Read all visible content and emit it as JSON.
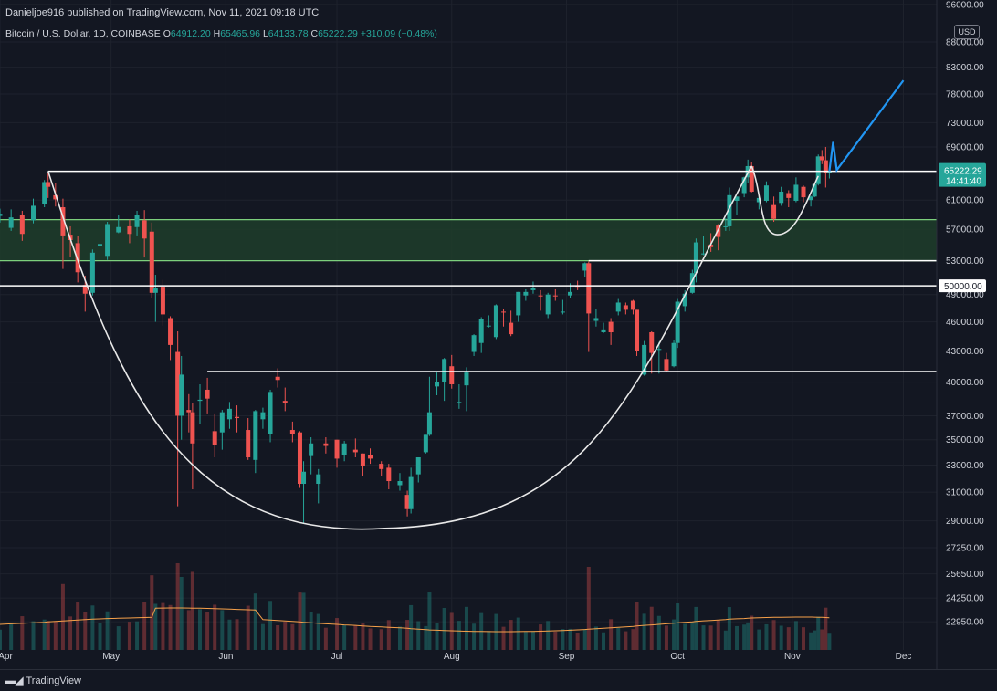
{
  "header": {
    "published": "Danieljoe916 published on TradingView.com, Nov 11, 2021 09:18 UTC"
  },
  "symbol": {
    "name": "Bitcoin / U.S. Dollar, 1D, COINBASE",
    "open_label": "O",
    "open": "64912.20",
    "high_label": "H",
    "high": "65465.96",
    "low_label": "L",
    "low": "64133.78",
    "close_label": "C",
    "close": "65222.29",
    "change": "+310.09 (+0.48%)"
  },
  "price_axis": {
    "currency": "USD",
    "ticks": [
      "96000.00",
      "88000.00",
      "83000.00",
      "78000.00",
      "73000.00",
      "69000.00",
      "61000.00",
      "57000.00",
      "53000.00",
      "49000.00",
      "46000.00",
      "43000.00",
      "40000.00",
      "37000.00",
      "35000.00",
      "33000.00",
      "31000.00",
      "29000.00",
      "27250.00",
      "25650.00",
      "24250.00",
      "22950.00"
    ],
    "current_price": "65222.29",
    "countdown": "14:41:40",
    "level_label": "50000.00"
  },
  "time_axis": {
    "ticks": [
      "Apr",
      "May",
      "Jun",
      "Jul",
      "Aug",
      "Sep",
      "Oct",
      "Nov",
      "Dec"
    ]
  },
  "footer": {
    "brand": "TradingView"
  },
  "colors": {
    "background": "#131722",
    "up": "#26a69a",
    "down": "#ef5350",
    "zone": "#1f3d2a",
    "zone_line": "#7ccf7c",
    "projection": "#2196f3",
    "level": "#ffffff"
  },
  "chart_data": {
    "type": "candlestick",
    "title": "Bitcoin / U.S. Dollar, 1D, COINBASE",
    "x_range": [
      "2021-04-01",
      "2021-12-10"
    ],
    "y_scale": "log",
    "ylim": [
      21500,
      97000
    ],
    "candles": [
      [
        "2021-04-01",
        58800,
        59800,
        57900,
        59100
      ],
      [
        "2021-04-04",
        57200,
        59700,
        56800,
        58600
      ],
      [
        "2021-04-07",
        58900,
        59500,
        55500,
        56400
      ],
      [
        "2021-04-10",
        58200,
        61200,
        57800,
        60200
      ],
      [
        "2021-04-13",
        60400,
        63900,
        60000,
        63600
      ],
      [
        "2021-04-14",
        63600,
        64900,
        61300,
        62900
      ],
      [
        "2021-04-16",
        61700,
        63500,
        60100,
        61100
      ],
      [
        "2021-04-18",
        60000,
        61200,
        52000,
        56200
      ],
      [
        "2021-04-20",
        56300,
        57400,
        53500,
        55600
      ],
      [
        "2021-04-22",
        55200,
        56100,
        50400,
        51600
      ],
      [
        "2021-04-24",
        50100,
        51200,
        47100,
        49100
      ],
      [
        "2021-04-26",
        49200,
        54400,
        48900,
        54000
      ],
      [
        "2021-04-28",
        54800,
        56400,
        53600,
        55100
      ],
      [
        "2021-04-30",
        53600,
        58000,
        53100,
        57700
      ],
      [
        "2021-05-03",
        56600,
        58900,
        56500,
        57300
      ],
      [
        "2021-05-06",
        57400,
        58300,
        55200,
        56400
      ],
      [
        "2021-05-08",
        57300,
        59500,
        56200,
        58900
      ],
      [
        "2021-05-10",
        58200,
        59600,
        53400,
        55800
      ],
      [
        "2021-05-12",
        56700,
        57900,
        48600,
        49200
      ],
      [
        "2021-05-13",
        49200,
        51300,
        46000,
        49700
      ],
      [
        "2021-05-15",
        49900,
        50700,
        45600,
        46800
      ],
      [
        "2021-05-17",
        46400,
        46600,
        42100,
        43600
      ],
      [
        "2021-05-19",
        42900,
        45000,
        30000,
        37000
      ],
      [
        "2021-05-20",
        37000,
        42500,
        35000,
        40700
      ],
      [
        "2021-05-22",
        37500,
        38900,
        35600,
        37300
      ],
      [
        "2021-05-23",
        37300,
        38100,
        31200,
        34700
      ],
      [
        "2021-05-25",
        38300,
        39800,
        36300,
        38400
      ],
      [
        "2021-05-27",
        39300,
        40400,
        37200,
        38500
      ],
      [
        "2021-05-29",
        35700,
        37200,
        33600,
        34600
      ],
      [
        "2021-05-31",
        35600,
        37500,
        34200,
        37300
      ],
      [
        "2021-06-02",
        36700,
        38200,
        35900,
        37600
      ],
      [
        "2021-06-04",
        36900,
        37900,
        35600,
        36800
      ],
      [
        "2021-06-07",
        35800,
        36800,
        33400,
        33600
      ],
      [
        "2021-06-09",
        33400,
        37500,
        32400,
        37400
      ],
      [
        "2021-06-11",
        36700,
        37700,
        35900,
        37300
      ],
      [
        "2021-06-13",
        35500,
        39300,
        34800,
        39100
      ],
      [
        "2021-06-15",
        40500,
        41300,
        39500,
        40200
      ],
      [
        "2021-06-17",
        38300,
        39500,
        37400,
        38100
      ],
      [
        "2021-06-19",
        35800,
        36500,
        34800,
        35500
      ],
      [
        "2021-06-21",
        35600,
        35700,
        31300,
        31600
      ],
      [
        "2021-06-22",
        31600,
        33300,
        28800,
        32500
      ],
      [
        "2021-06-24",
        33700,
        35200,
        32300,
        34700
      ],
      [
        "2021-06-26",
        31600,
        32700,
        30200,
        32300
      ],
      [
        "2021-06-28",
        34700,
        35200,
        33900,
        34500
      ],
      [
        "2021-07-01",
        35000,
        35000,
        32800,
        33500
      ],
      [
        "2021-07-03",
        33800,
        34900,
        33300,
        34700
      ],
      [
        "2021-07-06",
        34200,
        35100,
        33600,
        34000
      ],
      [
        "2021-07-08",
        33900,
        33900,
        32200,
        32900
      ],
      [
        "2021-07-10",
        33800,
        34300,
        33100,
        33500
      ],
      [
        "2021-07-13",
        33100,
        33300,
        32200,
        32700
      ],
      [
        "2021-07-15",
        32800,
        33100,
        31200,
        31800
      ],
      [
        "2021-07-18",
        31500,
        32400,
        31100,
        31800
      ],
      [
        "2021-07-20",
        30800,
        31100,
        29300,
        29800
      ],
      [
        "2021-07-21",
        29800,
        32800,
        29500,
        32100
      ],
      [
        "2021-07-23",
        32300,
        33600,
        31700,
        33600
      ],
      [
        "2021-07-25",
        34000,
        35400,
        33900,
        35400
      ],
      [
        "2021-07-26",
        35400,
        40500,
        35300,
        37300
      ],
      [
        "2021-07-28",
        39600,
        40900,
        38800,
        40000
      ],
      [
        "2021-07-30",
        40000,
        42300,
        38300,
        42200
      ],
      [
        "2021-08-01",
        41500,
        42600,
        39400,
        39800
      ],
      [
        "2021-08-03",
        38200,
        39800,
        37600,
        38200
      ],
      [
        "2021-08-05",
        39700,
        41400,
        37400,
        40900
      ],
      [
        "2021-08-07",
        42900,
        44700,
        42500,
        44600
      ],
      [
        "2021-08-09",
        43800,
        46500,
        42800,
        46300
      ],
      [
        "2021-08-11",
        45600,
        46700,
        45400,
        45600
      ],
      [
        "2021-08-13",
        44400,
        47900,
        44200,
        47800
      ],
      [
        "2021-08-15",
        47100,
        47400,
        45500,
        47000
      ],
      [
        "2021-08-17",
        45900,
        47200,
        44500,
        44700
      ],
      [
        "2021-08-19",
        46700,
        49300,
        46000,
        49300
      ],
      [
        "2021-08-21",
        48900,
        49600,
        48300,
        49300
      ],
      [
        "2021-08-23",
        49500,
        50500,
        49100,
        49700
      ],
      [
        "2021-08-25",
        48900,
        49500,
        47200,
        48800
      ],
      [
        "2021-08-27",
        46800,
        49200,
        46400,
        49000
      ],
      [
        "2021-08-29",
        48900,
        49600,
        48300,
        48800
      ],
      [
        "2021-08-31",
        47100,
        48400,
        46800,
        47100
      ],
      [
        "2021-09-02",
        48900,
        50300,
        48600,
        49300
      ],
      [
        "2021-09-04",
        50000,
        50600,
        49500,
        49900
      ],
      [
        "2021-09-06",
        51800,
        52800,
        51000,
        52700
      ],
      [
        "2021-09-07",
        52700,
        52900,
        42900,
        46900
      ],
      [
        "2021-09-09",
        46100,
        47400,
        45500,
        46400
      ],
      [
        "2021-09-11",
        44900,
        45900,
        44800,
        45200
      ],
      [
        "2021-09-13",
        46000,
        46400,
        43600,
        44900
      ],
      [
        "2021-09-15",
        47100,
        48500,
        46700,
        48100
      ],
      [
        "2021-09-17",
        47800,
        48100,
        46800,
        47300
      ],
      [
        "2021-09-19",
        48300,
        48400,
        46800,
        47300
      ],
      [
        "2021-09-20",
        47300,
        47300,
        42500,
        43000
      ],
      [
        "2021-09-22",
        40700,
        44000,
        40600,
        43600
      ],
      [
        "2021-09-24",
        44900,
        45000,
        40800,
        42800
      ],
      [
        "2021-09-26",
        43100,
        43900,
        40800,
        43200
      ],
      [
        "2021-09-28",
        42200,
        42800,
        41000,
        41100
      ],
      [
        "2021-09-30",
        41500,
        44100,
        41400,
        43800
      ],
      [
        "2021-10-01",
        43800,
        48500,
        43300,
        48200
      ],
      [
        "2021-10-03",
        47700,
        49500,
        47100,
        49100
      ],
      [
        "2021-10-05",
        49200,
        51900,
        49100,
        51500
      ],
      [
        "2021-10-06",
        51500,
        55800,
        50400,
        55300
      ],
      [
        "2021-10-08",
        53800,
        56100,
        53700,
        53900
      ],
      [
        "2021-10-10",
        55000,
        56500,
        54100,
        54700
      ],
      [
        "2021-10-12",
        57500,
        57700,
        54300,
        56000
      ],
      [
        "2021-10-14",
        57300,
        58500,
        56800,
        57400
      ],
      [
        "2021-10-15",
        57400,
        62800,
        56800,
        61700
      ],
      [
        "2021-10-17",
        60900,
        61500,
        58900,
        61500
      ],
      [
        "2021-10-19",
        62000,
        64400,
        61400,
        64300
      ],
      [
        "2021-10-20",
        64300,
        67000,
        63500,
        66000
      ],
      [
        "2021-10-21",
        66000,
        66600,
        62100,
        62200
      ],
      [
        "2021-10-23",
        60700,
        61700,
        59700,
        61300
      ],
      [
        "2021-10-25",
        60900,
        63700,
        60700,
        63100
      ],
      [
        "2021-10-27",
        60300,
        61500,
        58000,
        58400
      ],
      [
        "2021-10-29",
        60600,
        62900,
        60200,
        62200
      ],
      [
        "2021-10-31",
        62000,
        62400,
        60000,
        61300
      ],
      [
        "2021-11-02",
        60900,
        64300,
        60700,
        63200
      ],
      [
        "2021-11-04",
        62900,
        63100,
        60700,
        61400
      ],
      [
        "2021-11-06",
        61000,
        61600,
        60100,
        61500
      ],
      [
        "2021-11-07",
        61500,
        63300,
        61400,
        63300
      ],
      [
        "2021-11-08",
        63300,
        67800,
        63100,
        67500
      ],
      [
        "2021-11-09",
        67500,
        68500,
        66300,
        66900
      ],
      [
        "2021-11-10",
        66900,
        69000,
        62800,
        64900
      ],
      [
        "2021-11-11",
        64912.2,
        65465.96,
        64133.78,
        65222.29
      ]
    ],
    "horizontal_levels": [
      65222.29,
      53000,
      50000,
      41000
    ],
    "support_zone": [
      53000,
      58300
    ],
    "projection_path": [
      [
        "2021-11-11",
        65222.29
      ],
      [
        "2021-11-12",
        69800
      ],
      [
        "2021-11-13",
        65400
      ],
      [
        "2021-12-01",
        80500
      ]
    ]
  }
}
